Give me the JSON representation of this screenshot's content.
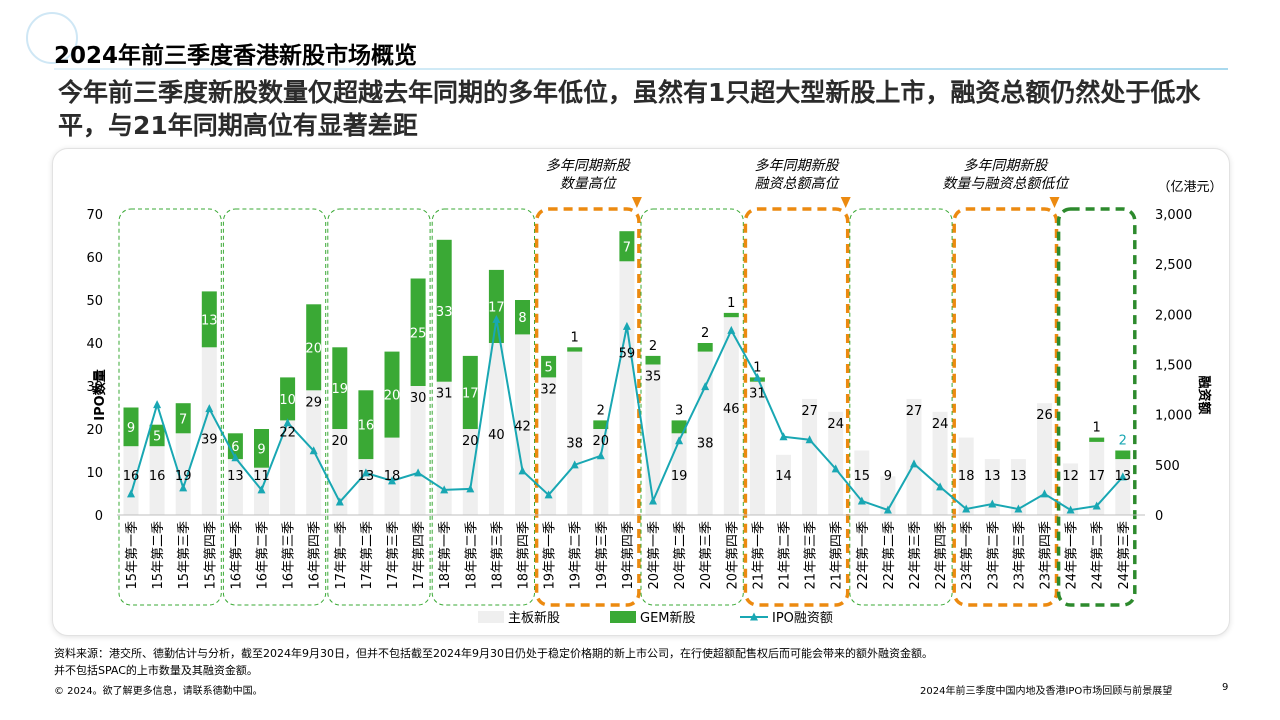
{
  "page": {
    "title": "2024年前三季度香港新股市场概览",
    "subtitle": "今年前三季度新股数量仅超越去年同期的多年低位，虽然有1只超大型新股上市，融资总额仍然处于低水平，与21年同期高位有显著差距",
    "source_note_1": "资料来源：港交所、德勤估计与分析，截至2024年9月30日，但并不包括截至2024年9月30日仍处于稳定价格期的新上市公司，在行使超额配售权后而可能会带来的额外融资金额。",
    "source_note_2": "并不包括SPAC的上市数量及其融资金额。",
    "copyright": "© 2024。欲了解更多信息，请联系德勤中国。",
    "doc_title": "2024年前三季度中国内地及香港IPO市场回顾与前景展望",
    "page_number": "9"
  },
  "colors": {
    "main_board": "#efefef",
    "gem": "#3aa935",
    "line": "#19a7b3",
    "box_green": "#3aa935",
    "box_orange": "#ec8a10",
    "box_darkgreen": "#2d8a2d"
  },
  "chart_data": {
    "type": "bar",
    "title": "",
    "ylabel": "IPO数量",
    "y2label": "融资额",
    "y2unit": "（亿港元）",
    "ylim": [
      0,
      70
    ],
    "y2lim": [
      0,
      3000
    ],
    "y_ticks": [
      "0",
      "10",
      "20",
      "30",
      "40",
      "50",
      "60",
      "70"
    ],
    "y2_ticks": [
      "0",
      "500",
      "1,000",
      "1,500",
      "2,000",
      "2,500",
      "3,000"
    ],
    "categories": [
      "15年第一季",
      "15年第二季",
      "15年第三季",
      "15年第四季",
      "16年第一季",
      "16年第二季",
      "16年第三季",
      "16年第四季",
      "17年第一季",
      "17年第二季",
      "17年第三季",
      "17年第四季",
      "18年第一季",
      "18年第二季",
      "18年第三季",
      "18年第四季",
      "19年第一季",
      "19年第二季",
      "19年第三季",
      "19年第四季",
      "20年第一季",
      "20年第二季",
      "20年第三季",
      "20年第四季",
      "21年第一季",
      "21年第二季",
      "21年第三季",
      "21年第四季",
      "22年第一季",
      "22年第二季",
      "22年第三季",
      "22年第四季",
      "23年第一季",
      "23年第二季",
      "23年第三季",
      "23年第四季",
      "24年第一季",
      "24年第二季",
      "24年第三季"
    ],
    "series": [
      {
        "name": "主板新股",
        "type": "bar",
        "values": [
          16,
          16,
          19,
          39,
          13,
          11,
          22,
          29,
          20,
          13,
          18,
          30,
          31,
          20,
          40,
          42,
          32,
          38,
          20,
          59,
          35,
          19,
          38,
          46,
          31,
          14,
          27,
          24,
          15,
          9,
          27,
          24,
          18,
          13,
          13,
          26,
          12,
          17,
          13
        ]
      },
      {
        "name": "GEM新股",
        "type": "bar",
        "values": [
          9,
          5,
          7,
          13,
          6,
          9,
          10,
          20,
          19,
          16,
          20,
          25,
          33,
          17,
          17,
          8,
          5,
          1,
          2,
          7,
          2,
          3,
          2,
          1,
          1,
          0,
          0,
          0,
          0,
          0,
          0,
          0,
          0,
          0,
          0,
          0,
          0,
          1,
          2
        ]
      },
      {
        "name": "IPO融资额",
        "type": "line",
        "axis": "y2",
        "values": [
          210,
          1100,
          270,
          1060,
          570,
          250,
          920,
          640,
          130,
          420,
          340,
          420,
          250,
          260,
          1950,
          440,
          200,
          500,
          590,
          1880,
          140,
          740,
          1280,
          1840,
          1370,
          780,
          750,
          460,
          140,
          50,
          510,
          280,
          60,
          110,
          60,
          210,
          50,
          90,
          380
        ]
      }
    ],
    "legend": [
      {
        "label": "主板新股",
        "kind": "main"
      },
      {
        "label": "GEM新股",
        "kind": "gem"
      },
      {
        "label": "IPO融资额",
        "kind": "line"
      }
    ],
    "legend_position": "bottom",
    "groups": [
      {
        "start": 0,
        "end": 3,
        "style": "green-dashed"
      },
      {
        "start": 4,
        "end": 7,
        "style": "green-dashed"
      },
      {
        "start": 8,
        "end": 11,
        "style": "green-dashed"
      },
      {
        "start": 12,
        "end": 15,
        "style": "green-dashed"
      },
      {
        "start": 16,
        "end": 19,
        "style": "orange-dashed"
      },
      {
        "start": 20,
        "end": 23,
        "style": "green-dashed"
      },
      {
        "start": 24,
        "end": 27,
        "style": "orange-dashed"
      },
      {
        "start": 28,
        "end": 31,
        "style": "green-dashed"
      },
      {
        "start": 32,
        "end": 35,
        "style": "orange-dashed"
      },
      {
        "start": 36,
        "end": 38,
        "style": "darkgreen-dashed"
      }
    ],
    "annotations": [
      {
        "lines": [
          "多年同期新股",
          "数量高位"
        ],
        "group": 4
      },
      {
        "lines": [
          "多年同期新股",
          "融资总额高位"
        ],
        "group": 6
      },
      {
        "lines": [
          "多年同期新股",
          "数量与融资总额低位"
        ],
        "group": 8
      }
    ]
  }
}
